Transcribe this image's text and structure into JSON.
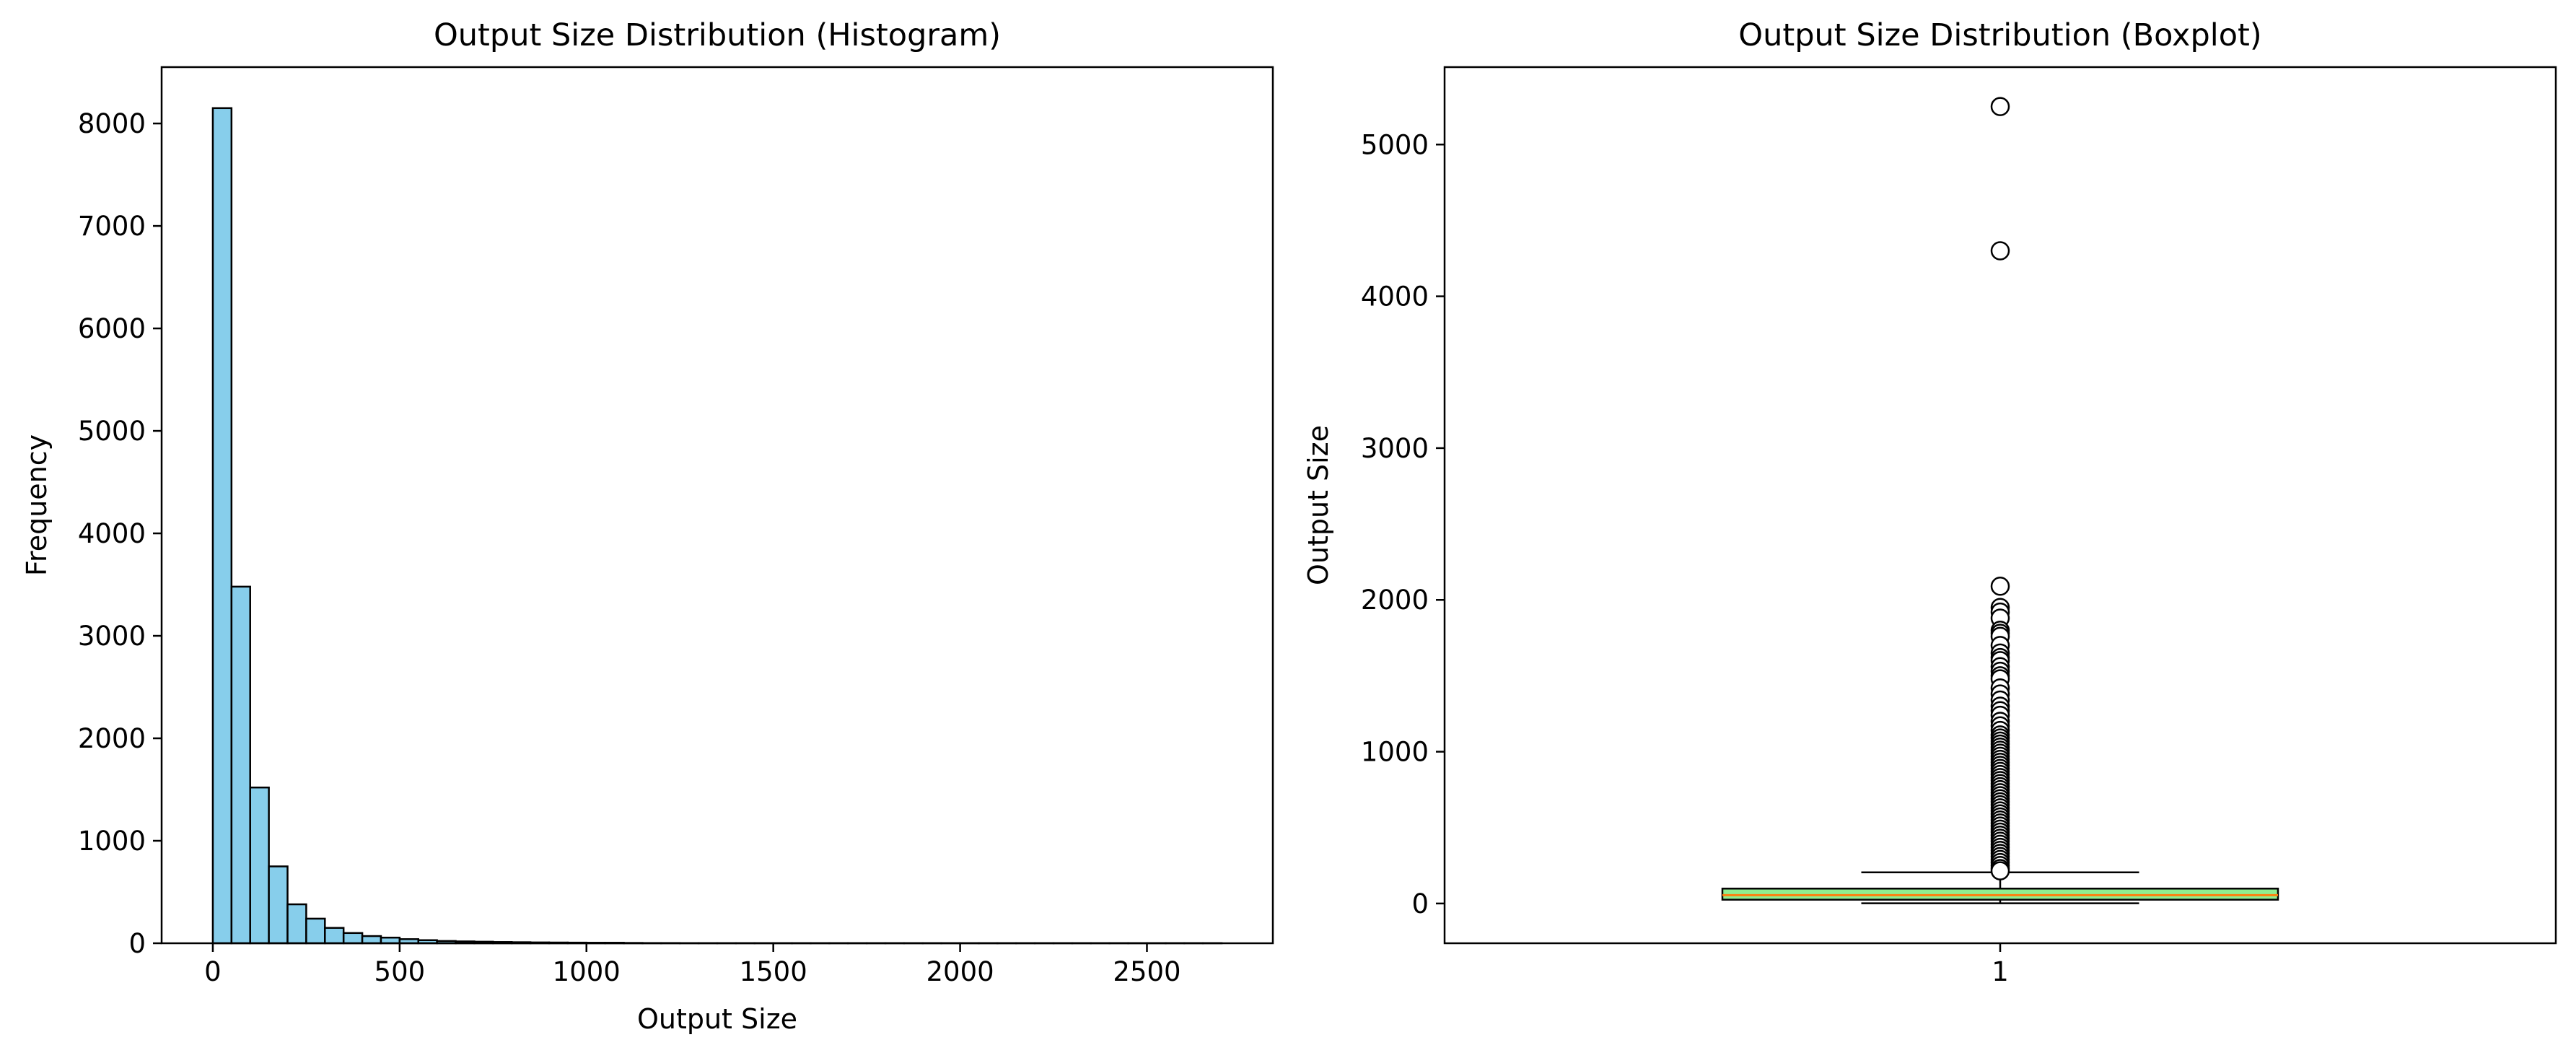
{
  "colors": {
    "hist_fill": "#87ceeb",
    "edge": "#000000",
    "box_fill": "#90ee90",
    "median": "#ff7f0e",
    "flier_face": "#ffffff"
  },
  "chart_data": [
    {
      "type": "histogram",
      "title": "Output Size Distribution (Histogram)",
      "xlabel": "Output Size",
      "ylabel": "Frequency",
      "xlim": [
        -137,
        2837
      ],
      "ylim": [
        0,
        8550
      ],
      "xticks": [
        0,
        500,
        1000,
        1500,
        2000,
        2500
      ],
      "yticks": [
        0,
        1000,
        2000,
        3000,
        4000,
        5000,
        6000,
        7000,
        8000
      ],
      "bin_width": 50,
      "bins_start": 0,
      "counts": [
        8150,
        3480,
        1520,
        750,
        380,
        240,
        150,
        100,
        70,
        55,
        40,
        30,
        22,
        18,
        15,
        12,
        10,
        8,
        7,
        6,
        5,
        5,
        3,
        2,
        2,
        1,
        1,
        1,
        1,
        1,
        1,
        1,
        1,
        1,
        1,
        1,
        1,
        1,
        1,
        1,
        1,
        1,
        1,
        1,
        1,
        1,
        1,
        1,
        1,
        1,
        1,
        1,
        1,
        1
      ],
      "grid": false
    },
    {
      "type": "boxplot",
      "title": "Output Size Distribution (Boxplot)",
      "xlabel": "",
      "ylabel": "Output Size",
      "xlim": [
        0.5,
        1.5
      ],
      "ylim": [
        -262,
        5510
      ],
      "xticks": [
        1
      ],
      "yticks": [
        0,
        1000,
        2000,
        3000,
        4000,
        5000
      ],
      "stats": {
        "whisker_low": 1,
        "q1": 25,
        "median": 55,
        "q3": 98,
        "whisker_high": 205
      },
      "outliers": [
        5250,
        4300,
        2090,
        1950,
        1920,
        1880,
        1800,
        1780,
        1760,
        1700,
        1650,
        1620,
        1600,
        1560,
        1530,
        1500,
        1480,
        1420,
        1380,
        1340,
        1300,
        1270,
        1240,
        1200,
        1170,
        1140,
        1110,
        1090,
        1070,
        1050,
        1030,
        1010,
        990,
        970,
        950,
        930,
        910,
        890,
        870,
        850,
        830,
        810,
        790,
        770,
        750,
        730,
        710,
        690,
        670,
        650,
        630,
        610,
        590,
        570,
        550,
        530,
        510,
        490,
        470,
        450,
        430,
        410,
        390,
        370,
        350,
        330,
        310,
        290,
        270,
        250,
        230,
        215
      ],
      "grid": false
    }
  ]
}
